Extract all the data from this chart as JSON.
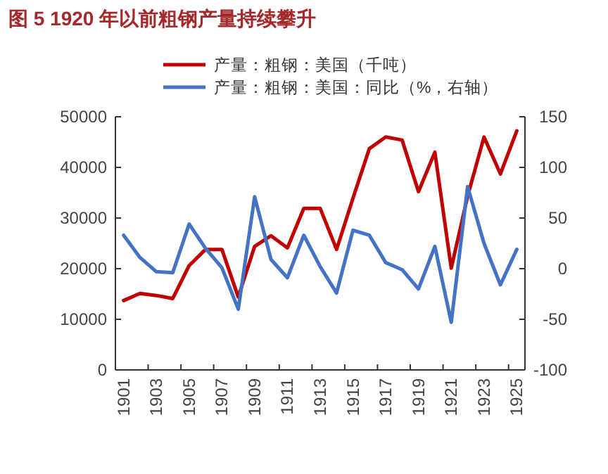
{
  "chart_data": {
    "type": "line",
    "title": "图 5 1920 年以前粗钢产量持续攀升",
    "categories": [
      "1901",
      null,
      "1903",
      null,
      "1905",
      null,
      "1907",
      null,
      "1909",
      null,
      "1911",
      null,
      "1913",
      null,
      "1915",
      null,
      "1917",
      null,
      "1919",
      null,
      "1921",
      null,
      "1923",
      null,
      "1925"
    ],
    "series": [
      {
        "name": "产量：粗钢：美国（千吨）",
        "color": "#c00000",
        "values": [
          13700,
          15100,
          14700,
          14100,
          20600,
          23800,
          23800,
          14400,
          24400,
          26500,
          24100,
          31900,
          31900,
          23800,
          33900,
          43700,
          46000,
          45400,
          35200,
          43000,
          20100,
          34300,
          46000,
          38700,
          47200
        ]
      },
      {
        "name": "产量：粗钢：美国：同比（%，右轴）",
        "color": "#4472c4",
        "axis": "y2",
        "values": [
          33,
          11,
          -3,
          -4,
          44,
          20,
          1,
          -40,
          71,
          9,
          -9,
          33,
          2,
          -24,
          38,
          33,
          6,
          -1,
          -20,
          22,
          -53,
          81,
          25,
          -16,
          19
        ]
      }
    ],
    "ylim": [
      0,
      50000
    ],
    "yticks": [
      0,
      10000,
      20000,
      30000,
      40000,
      50000
    ],
    "y2lim": [
      -100,
      150
    ],
    "y2ticks": [
      -100,
      -50,
      0,
      50,
      100,
      150
    ],
    "grid": false,
    "legend": "top right",
    "marker": "none",
    "line_style": "solid"
  }
}
